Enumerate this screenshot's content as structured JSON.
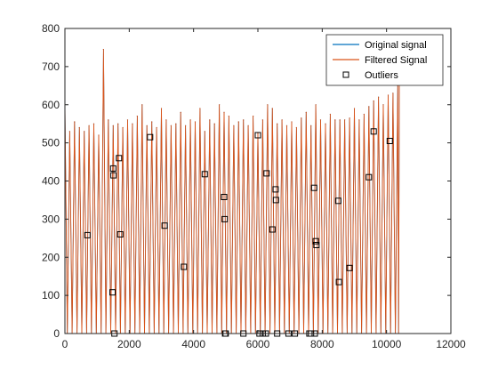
{
  "chart_data": {
    "type": "line",
    "title": "",
    "xlabel": "",
    "ylabel": "",
    "xlim": [
      0,
      12000
    ],
    "ylim": [
      0,
      800
    ],
    "x_ticks": [
      0,
      2000,
      4000,
      6000,
      8000,
      10000,
      12000
    ],
    "y_ticks": [
      0,
      100,
      200,
      300,
      400,
      500,
      600,
      700,
      800
    ],
    "x_tick_labels": [
      "0",
      "2000",
      "4000",
      "6000",
      "8000",
      "10000",
      "12000"
    ],
    "y_tick_labels": [
      "0",
      "100",
      "200",
      "300",
      "400",
      "500",
      "600",
      "700",
      "800"
    ],
    "grid": false,
    "legend_position": "top-right",
    "series": [
      {
        "name": "Original signal",
        "color": "#0072BD",
        "style": "line",
        "x": [
          0,
          150,
          300,
          450,
          600,
          750,
          900,
          1050,
          1200,
          1350,
          1500,
          1650,
          1800,
          1950,
          2100,
          2250,
          2400,
          2550,
          2700,
          2850,
          3000,
          3150,
          3300,
          3450,
          3600,
          3750,
          3900,
          4050,
          4200,
          4350,
          4500,
          4650,
          4800,
          4950,
          5100,
          5250,
          5400,
          5550,
          5700,
          5850,
          6000,
          6150,
          6300,
          6450,
          6600,
          6750,
          6900,
          7050,
          7200,
          7350,
          7500,
          7650,
          7800,
          7950,
          8100,
          8250,
          8400,
          8550,
          8700,
          8850,
          9000,
          9150,
          9300,
          9450,
          9600,
          9750,
          9900,
          10050,
          10200,
          10350,
          10400
        ],
        "y": [
          600,
          530,
          555,
          540,
          530,
          545,
          550,
          520,
          745,
          560,
          545,
          550,
          540,
          560,
          550,
          570,
          600,
          545,
          555,
          540,
          590,
          560,
          545,
          550,
          580,
          545,
          560,
          555,
          590,
          530,
          560,
          550,
          600,
          580,
          570,
          545,
          555,
          560,
          545,
          570,
          525,
          560,
          600,
          590,
          550,
          560,
          545,
          555,
          540,
          565,
          580,
          545,
          600,
          560,
          550,
          575,
          560,
          560,
          560,
          565,
          590,
          560,
          575,
          595,
          610,
          620,
          600,
          625,
          630,
          650,
          700
        ]
      },
      {
        "name": "Filtered Signal",
        "color": "#D95319",
        "style": "line",
        "x": [
          0,
          150,
          300,
          450,
          600,
          750,
          900,
          1050,
          1200,
          1350,
          1500,
          1650,
          1800,
          1950,
          2100,
          2250,
          2400,
          2550,
          2700,
          2850,
          3000,
          3150,
          3300,
          3450,
          3600,
          3750,
          3900,
          4050,
          4200,
          4350,
          4500,
          4650,
          4800,
          4950,
          5100,
          5250,
          5400,
          5550,
          5700,
          5850,
          6000,
          6150,
          6300,
          6450,
          6600,
          6750,
          6900,
          7050,
          7200,
          7350,
          7500,
          7650,
          7800,
          7950,
          8100,
          8250,
          8400,
          8550,
          8700,
          8850,
          9000,
          9150,
          9300,
          9450,
          9600,
          9750,
          9900,
          10050,
          10200,
          10350,
          10400
        ],
        "y": [
          600,
          530,
          555,
          540,
          530,
          545,
          550,
          520,
          745,
          560,
          545,
          550,
          540,
          560,
          550,
          570,
          600,
          545,
          555,
          540,
          590,
          560,
          545,
          550,
          580,
          545,
          560,
          555,
          590,
          530,
          560,
          550,
          600,
          580,
          570,
          545,
          555,
          560,
          545,
          570,
          525,
          560,
          600,
          590,
          550,
          560,
          545,
          555,
          540,
          565,
          580,
          545,
          600,
          560,
          550,
          575,
          560,
          560,
          560,
          565,
          590,
          560,
          575,
          595,
          610,
          620,
          600,
          625,
          630,
          650,
          700
        ]
      },
      {
        "name": "Outliers",
        "color": "#000000",
        "style": "markers",
        "marker": "square",
        "x": [
          700,
          1480,
          1500,
          1510,
          1540,
          1680,
          1720,
          2650,
          3100,
          3700,
          4350,
          4950,
          4970,
          4980,
          5000,
          5550,
          6000,
          6050,
          6150,
          6250,
          6270,
          6450,
          6550,
          6560,
          6600,
          6950,
          7150,
          7600,
          7650,
          7750,
          7770,
          7800,
          7820,
          8500,
          8520,
          8850,
          9450,
          9600,
          10100
        ],
        "y": [
          258,
          108,
          433,
          415,
          0,
          460,
          260,
          515,
          283,
          175,
          418,
          358,
          300,
          0,
          0,
          0,
          520,
          0,
          0,
          0,
          420,
          273,
          378,
          350,
          0,
          0,
          0,
          0,
          0,
          382,
          0,
          242,
          232,
          348,
          135,
          172,
          410,
          530,
          505
        ]
      }
    ]
  }
}
